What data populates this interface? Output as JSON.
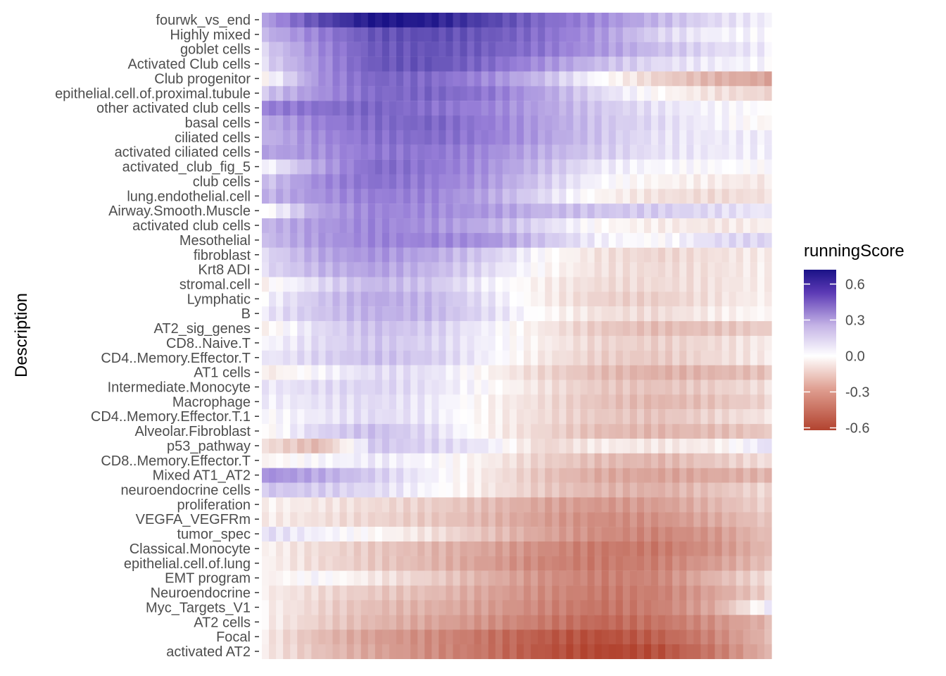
{
  "chart_data": {
    "type": "heatmap",
    "title": "",
    "xlabel": "",
    "ylabel": "Description",
    "legend": {
      "title": "runningScore",
      "position": "right",
      "range": [
        -0.62,
        0.72
      ],
      "ticks": [
        0.6,
        0.3,
        0.0,
        -0.3,
        -0.6
      ],
      "tick_labels": [
        "0.6",
        "0.3",
        "0.0",
        "-0.3",
        "-0.6"
      ],
      "colors": {
        "low": "#B2432F",
        "mid": "#FFFFFF",
        "high": "#1A1287"
      }
    },
    "grid": false,
    "rows": [
      {
        "label": "fourwk_vs_end",
        "profile": [
          0.25,
          0.52,
          0.72,
          0.68,
          0.55,
          0.42,
          0.32,
          0.2,
          0.1,
          0.04
        ]
      },
      {
        "label": "Highly mixed",
        "profile": [
          0.2,
          0.35,
          0.5,
          0.52,
          0.48,
          0.4,
          0.28,
          0.12,
          0.04,
          0.02
        ]
      },
      {
        "label": "goblet cells",
        "profile": [
          0.12,
          0.32,
          0.48,
          0.5,
          0.46,
          0.38,
          0.28,
          0.18,
          0.1,
          0.05
        ]
      },
      {
        "label": "Activated Club cells",
        "profile": [
          0.1,
          0.3,
          0.48,
          0.5,
          0.42,
          0.3,
          0.18,
          0.1,
          0.05,
          0.02
        ]
      },
      {
        "label": "Club progenitor",
        "profile": [
          -0.04,
          0.3,
          0.44,
          0.42,
          0.32,
          0.18,
          0.0,
          -0.15,
          -0.25,
          -0.3
        ]
      },
      {
        "label": "epithelial.cell.of.proximal.tubule",
        "profile": [
          0.15,
          0.3,
          0.42,
          0.44,
          0.38,
          0.25,
          0.1,
          -0.02,
          -0.1,
          -0.14
        ]
      },
      {
        "label": "other activated club cells",
        "profile": [
          0.35,
          0.4,
          0.44,
          0.4,
          0.34,
          0.25,
          0.15,
          0.08,
          0.03,
          0.0
        ]
      },
      {
        "label": "basal cells",
        "profile": [
          0.22,
          0.35,
          0.42,
          0.44,
          0.36,
          0.26,
          0.16,
          0.1,
          0.04,
          -0.04
        ]
      },
      {
        "label": "ciliated cells",
        "profile": [
          0.2,
          0.32,
          0.4,
          0.42,
          0.36,
          0.26,
          0.16,
          0.08,
          0.06,
          0.05
        ]
      },
      {
        "label": "activated ciliated cells",
        "profile": [
          0.25,
          0.3,
          0.38,
          0.38,
          0.32,
          0.22,
          0.14,
          0.08,
          0.06,
          0.04
        ]
      },
      {
        "label": "activated_club_fig_5",
        "profile": [
          0.0,
          0.25,
          0.42,
          0.38,
          0.3,
          0.18,
          0.06,
          0.02,
          0.01,
          0.0
        ]
      },
      {
        "label": "club cells",
        "profile": [
          0.15,
          0.32,
          0.4,
          0.36,
          0.28,
          0.14,
          0.02,
          -0.04,
          -0.06,
          -0.08
        ]
      },
      {
        "label": "lung.endothelial.cell",
        "profile": [
          0.2,
          0.3,
          0.36,
          0.34,
          0.24,
          0.1,
          -0.04,
          -0.1,
          -0.12,
          -0.1
        ]
      },
      {
        "label": "Airway.Smooth.Muscle",
        "profile": [
          -0.04,
          0.25,
          0.34,
          0.32,
          0.28,
          0.2,
          0.16,
          0.14,
          0.1,
          0.06
        ]
      },
      {
        "label": "activated club cells",
        "profile": [
          0.2,
          0.28,
          0.34,
          0.3,
          0.22,
          0.1,
          -0.02,
          -0.06,
          -0.08,
          -0.05
        ]
      },
      {
        "label": "Mesothelial",
        "profile": [
          0.18,
          0.28,
          0.34,
          0.34,
          0.3,
          0.16,
          0.04,
          0.0,
          0.1,
          0.12
        ]
      },
      {
        "label": "fibroblast",
        "profile": [
          0.1,
          0.24,
          0.3,
          0.24,
          0.14,
          0.0,
          -0.1,
          -0.14,
          -0.1,
          -0.06
        ]
      },
      {
        "label": "Krt8 ADI",
        "profile": [
          0.1,
          0.2,
          0.26,
          0.2,
          0.1,
          -0.02,
          -0.1,
          -0.12,
          -0.1,
          -0.05
        ]
      },
      {
        "label": "stromal.cell",
        "profile": [
          -0.04,
          0.1,
          0.2,
          0.16,
          0.04,
          -0.06,
          -0.12,
          -0.12,
          -0.1,
          -0.05
        ]
      },
      {
        "label": "Lymphatic",
        "profile": [
          0.02,
          0.16,
          0.24,
          0.2,
          0.08,
          -0.06,
          -0.15,
          -0.16,
          -0.1,
          -0.04
        ]
      },
      {
        "label": "B",
        "profile": [
          0.06,
          0.16,
          0.22,
          0.2,
          0.1,
          -0.02,
          -0.1,
          -0.12,
          -0.06,
          -0.02
        ]
      },
      {
        "label": "AT2_sig_genes",
        "profile": [
          -0.06,
          0.1,
          0.18,
          0.14,
          0.04,
          -0.08,
          -0.18,
          -0.22,
          -0.2,
          -0.16
        ]
      },
      {
        "label": "CD8..Naive.T",
        "profile": [
          0.02,
          0.1,
          0.16,
          0.12,
          0.04,
          -0.06,
          -0.14,
          -0.16,
          -0.12,
          -0.06
        ]
      },
      {
        "label": "CD4..Memory.Effector.T",
        "profile": [
          0.06,
          0.12,
          0.18,
          0.14,
          0.04,
          -0.08,
          -0.16,
          -0.18,
          -0.12,
          -0.06
        ]
      },
      {
        "label": "AT1 cells",
        "profile": [
          -0.08,
          0.02,
          0.1,
          0.08,
          -0.04,
          -0.14,
          -0.22,
          -0.26,
          -0.24,
          -0.2
        ]
      },
      {
        "label": "Intermediate.Monocyte",
        "profile": [
          0.06,
          0.1,
          0.12,
          0.08,
          0.0,
          -0.1,
          -0.18,
          -0.2,
          -0.16,
          -0.1
        ]
      },
      {
        "label": "Macrophage",
        "profile": [
          0.04,
          0.08,
          0.1,
          0.06,
          -0.04,
          -0.12,
          -0.2,
          -0.24,
          -0.2,
          -0.14
        ]
      },
      {
        "label": "CD4..Memory.Effector.T.1",
        "profile": [
          0.0,
          0.06,
          0.1,
          0.06,
          -0.04,
          -0.12,
          -0.18,
          -0.2,
          -0.14,
          -0.08
        ]
      },
      {
        "label": "Alveolar.Fibroblast",
        "profile": [
          -0.04,
          0.12,
          0.18,
          0.1,
          -0.04,
          -0.14,
          -0.22,
          -0.24,
          -0.22,
          -0.18
        ]
      },
      {
        "label": "p53_pathway",
        "profile": [
          -0.1,
          -0.24,
          0.16,
          0.12,
          0.06,
          -0.14,
          -0.06,
          -0.08,
          -0.06,
          0.1
        ]
      },
      {
        "label": "CD8..Memory.Effector.T",
        "profile": [
          -0.04,
          0.02,
          0.06,
          0.02,
          -0.06,
          -0.16,
          -0.22,
          -0.24,
          -0.18,
          -0.1
        ]
      },
      {
        "label": "Mixed AT1_AT2",
        "profile": [
          0.32,
          0.24,
          0.14,
          0.04,
          -0.08,
          -0.2,
          -0.28,
          -0.3,
          -0.28,
          -0.24
        ]
      },
      {
        "label": "neuroendocrine cells",
        "profile": [
          0.16,
          0.14,
          0.1,
          0.02,
          -0.08,
          -0.18,
          -0.24,
          -0.26,
          -0.2,
          -0.12
        ]
      },
      {
        "label": "proliferation",
        "profile": [
          -0.04,
          -0.08,
          -0.12,
          -0.16,
          -0.22,
          -0.3,
          -0.34,
          -0.32,
          -0.24,
          -0.14
        ]
      },
      {
        "label": "VEGFA_VEGFRm",
        "profile": [
          -0.06,
          -0.1,
          -0.14,
          -0.18,
          -0.24,
          -0.32,
          -0.38,
          -0.36,
          -0.28,
          -0.18
        ]
      },
      {
        "label": "tumor_spec",
        "profile": [
          0.1,
          0.04,
          -0.02,
          -0.1,
          -0.2,
          -0.3,
          -0.38,
          -0.4,
          -0.34,
          -0.2
        ]
      },
      {
        "label": "Classical.Monocyte",
        "profile": [
          -0.04,
          -0.12,
          -0.18,
          -0.24,
          -0.3,
          -0.38,
          -0.44,
          -0.44,
          -0.36,
          -0.22
        ]
      },
      {
        "label": "epithelial.cell.of.lung",
        "profile": [
          -0.04,
          -0.12,
          -0.18,
          -0.24,
          -0.32,
          -0.4,
          -0.44,
          -0.42,
          -0.32,
          -0.2
        ]
      },
      {
        "label": "EMT program",
        "profile": [
          -0.06,
          0.02,
          -0.08,
          -0.16,
          -0.26,
          -0.36,
          -0.42,
          -0.4,
          -0.24,
          -0.1
        ]
      },
      {
        "label": "Neuroendocrine",
        "profile": [
          -0.06,
          -0.12,
          -0.18,
          -0.22,
          -0.3,
          -0.38,
          -0.44,
          -0.42,
          -0.3,
          -0.14
        ]
      },
      {
        "label": "Myc_Targets_V1",
        "profile": [
          -0.04,
          -0.14,
          -0.22,
          -0.26,
          -0.32,
          -0.4,
          -0.46,
          -0.42,
          -0.28,
          0.06
        ]
      },
      {
        "label": "AT2 cells",
        "profile": [
          -0.04,
          -0.16,
          -0.24,
          -0.3,
          -0.36,
          -0.44,
          -0.5,
          -0.46,
          -0.36,
          -0.24
        ]
      },
      {
        "label": "Focal",
        "profile": [
          -0.06,
          -0.22,
          -0.32,
          -0.38,
          -0.46,
          -0.54,
          -0.58,
          -0.52,
          -0.4,
          -0.22
        ]
      },
      {
        "label": "activated AT2",
        "profile": [
          -0.06,
          -0.2,
          -0.3,
          -0.38,
          -0.46,
          -0.56,
          -0.62,
          -0.58,
          -0.44,
          -0.24
        ]
      }
    ]
  }
}
